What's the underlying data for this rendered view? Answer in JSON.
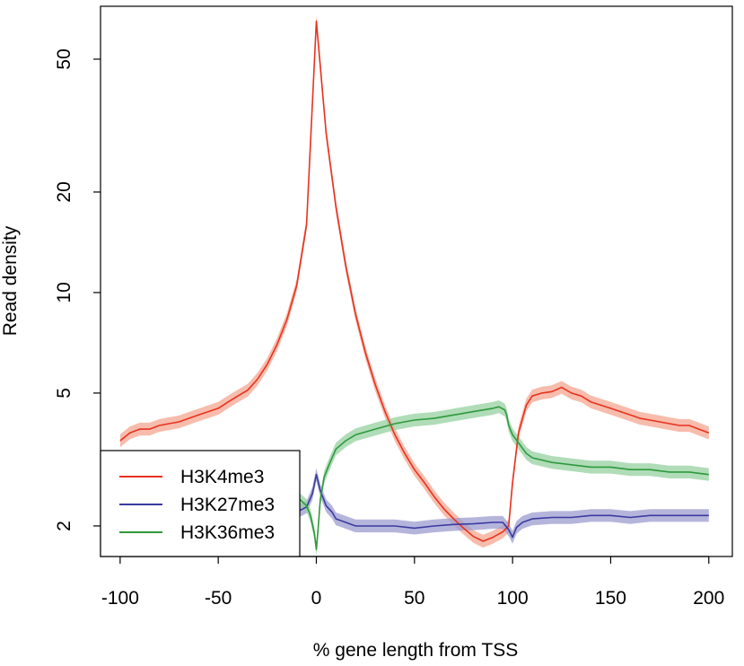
{
  "chart_data": {
    "type": "line",
    "title": "",
    "xlabel": "% gene length from TSS",
    "ylabel": "Read density",
    "xlim": [
      -110,
      212
    ],
    "ylim": [
      1.62,
      72
    ],
    "y_scale": "log",
    "x_ticks": [
      -100,
      -50,
      0,
      50,
      100,
      150,
      200
    ],
    "x_tick_labels": [
      "-100",
      "-50",
      "0",
      "50",
      "100",
      "150",
      "200"
    ],
    "y_ticks": [
      2,
      5,
      10,
      20,
      50
    ],
    "y_tick_labels": [
      "2",
      "5",
      "10",
      "20",
      "50"
    ],
    "grid": false,
    "legend_position": "bottom-left",
    "series": [
      {
        "name": "H3K4me3",
        "color": "#e8321e",
        "band_color": "#f4a690",
        "x": [
          -100,
          -95,
          -90,
          -85,
          -80,
          -75,
          -70,
          -65,
          -60,
          -55,
          -50,
          -45,
          -40,
          -35,
          -30,
          -25,
          -20,
          -15,
          -10,
          -5,
          0,
          5,
          10,
          15,
          20,
          25,
          30,
          35,
          40,
          45,
          50,
          55,
          60,
          65,
          70,
          75,
          80,
          85,
          90,
          95,
          98,
          100,
          103,
          107,
          110,
          115,
          120,
          125,
          130,
          135,
          140,
          145,
          150,
          155,
          160,
          165,
          170,
          175,
          180,
          185,
          190,
          195,
          200
        ],
        "values": [
          3.6,
          3.8,
          3.9,
          3.9,
          4.0,
          4.05,
          4.1,
          4.2,
          4.3,
          4.4,
          4.5,
          4.7,
          4.9,
          5.1,
          5.5,
          6.1,
          7.0,
          8.3,
          10.5,
          16,
          65,
          30,
          18,
          12,
          8.6,
          6.6,
          5.3,
          4.4,
          3.75,
          3.3,
          2.95,
          2.7,
          2.45,
          2.25,
          2.1,
          1.97,
          1.86,
          1.8,
          1.85,
          1.92,
          2.0,
          2.7,
          3.8,
          4.6,
          4.9,
          5.0,
          5.05,
          5.2,
          5.0,
          4.9,
          4.7,
          4.6,
          4.5,
          4.4,
          4.3,
          4.2,
          4.15,
          4.1,
          4.05,
          4.0,
          4.0,
          3.9,
          3.8
        ]
      },
      {
        "name": "H3K27me3",
        "color": "#3a3aa0",
        "band_color": "#9c9cd0",
        "x": [
          -100,
          -90,
          -80,
          -70,
          -60,
          -50,
          -40,
          -30,
          -20,
          -10,
          -5,
          -2,
          0,
          2,
          5,
          8,
          10,
          15,
          20,
          30,
          40,
          50,
          60,
          70,
          80,
          90,
          95,
          98,
          100,
          102,
          105,
          110,
          120,
          130,
          140,
          150,
          160,
          170,
          180,
          190,
          200
        ],
        "values": [
          2.1,
          2.1,
          2.1,
          2.1,
          2.1,
          2.1,
          2.12,
          2.15,
          2.15,
          2.2,
          2.28,
          2.5,
          2.85,
          2.55,
          2.3,
          2.2,
          2.1,
          2.05,
          2.0,
          2.0,
          2.0,
          1.97,
          2.0,
          2.02,
          2.03,
          2.05,
          2.05,
          1.95,
          1.85,
          1.98,
          2.05,
          2.1,
          2.12,
          2.12,
          2.15,
          2.15,
          2.12,
          2.15,
          2.15,
          2.15,
          2.15
        ]
      },
      {
        "name": "H3K36me3",
        "color": "#2e9a3c",
        "band_color": "#96d0a0",
        "x": [
          -100,
          -90,
          -80,
          -70,
          -60,
          -50,
          -40,
          -30,
          -20,
          -15,
          -10,
          -5,
          -3,
          -1,
          0,
          1,
          2,
          4,
          6,
          8,
          10,
          15,
          20,
          30,
          40,
          50,
          60,
          70,
          80,
          90,
          93,
          96,
          97,
          98,
          100,
          103,
          107,
          110,
          120,
          130,
          140,
          150,
          160,
          170,
          180,
          190,
          200
        ],
        "values": [
          2.85,
          2.85,
          2.85,
          2.8,
          2.8,
          2.75,
          2.7,
          2.65,
          2.55,
          2.5,
          2.45,
          2.3,
          2.15,
          1.9,
          1.7,
          2.0,
          2.4,
          2.8,
          3.0,
          3.2,
          3.4,
          3.6,
          3.75,
          3.9,
          4.05,
          4.15,
          4.2,
          4.3,
          4.4,
          4.5,
          4.55,
          4.45,
          4.3,
          4.0,
          3.75,
          3.55,
          3.3,
          3.2,
          3.1,
          3.05,
          3.0,
          3.0,
          2.95,
          2.95,
          2.9,
          2.9,
          2.85
        ]
      }
    ]
  }
}
